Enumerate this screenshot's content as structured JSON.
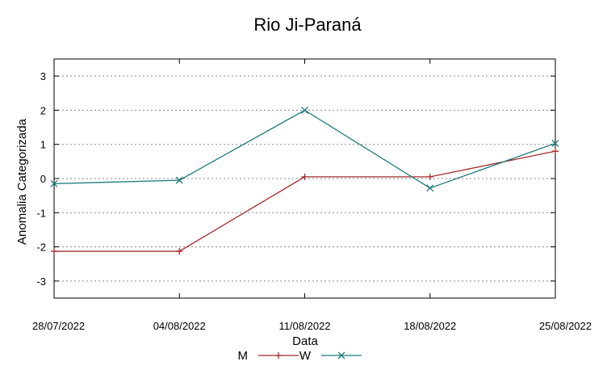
{
  "chart_data": {
    "type": "line",
    "title": "Rio Ji-Paraná",
    "xlabel": "Data",
    "ylabel": "Anomalia Categorizada",
    "categories": [
      "28/07/2022",
      "04/08/2022",
      "11/08/2022",
      "18/08/2022",
      "25/08/2022"
    ],
    "yticks": [
      "-3",
      "-2",
      "-1",
      "0",
      "1",
      "2",
      "3"
    ],
    "ylim": [
      -3.5,
      3.5
    ],
    "grid": "horizontal-dotted",
    "legend_position": "bottom-center",
    "series": [
      {
        "name": "M",
        "marker": "plus",
        "color": "#a52a2a",
        "values": [
          -2.13,
          -2.13,
          0.05,
          0.05,
          0.8
        ]
      },
      {
        "name": "W",
        "marker": "x",
        "color": "#1e7b7b",
        "values": [
          -0.15,
          -0.05,
          2.0,
          -0.28,
          1.03
        ]
      }
    ]
  }
}
